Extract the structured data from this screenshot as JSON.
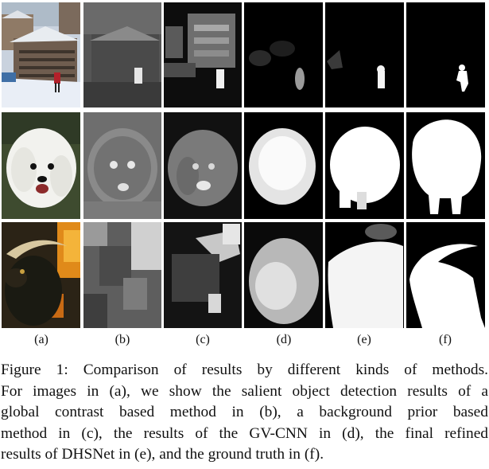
{
  "figure": {
    "column_labels": [
      "(a)",
      "(b)",
      "(c)",
      "(d)",
      "(e)",
      "(f)"
    ],
    "rows": [
      "houses-snow-person",
      "white-dog",
      "goat-fire"
    ],
    "caption_lines": [
      "Figure 1: Comparison of results by different kinds of methods.",
      "For images in (a), we show the salient object detection results of a",
      "global contrast based method in (b), a background prior based",
      "method in (c), the results of the GV-CNN in (d), the final refined",
      "results of DHSNet in (e), and the ground truth in (f)."
    ]
  }
}
